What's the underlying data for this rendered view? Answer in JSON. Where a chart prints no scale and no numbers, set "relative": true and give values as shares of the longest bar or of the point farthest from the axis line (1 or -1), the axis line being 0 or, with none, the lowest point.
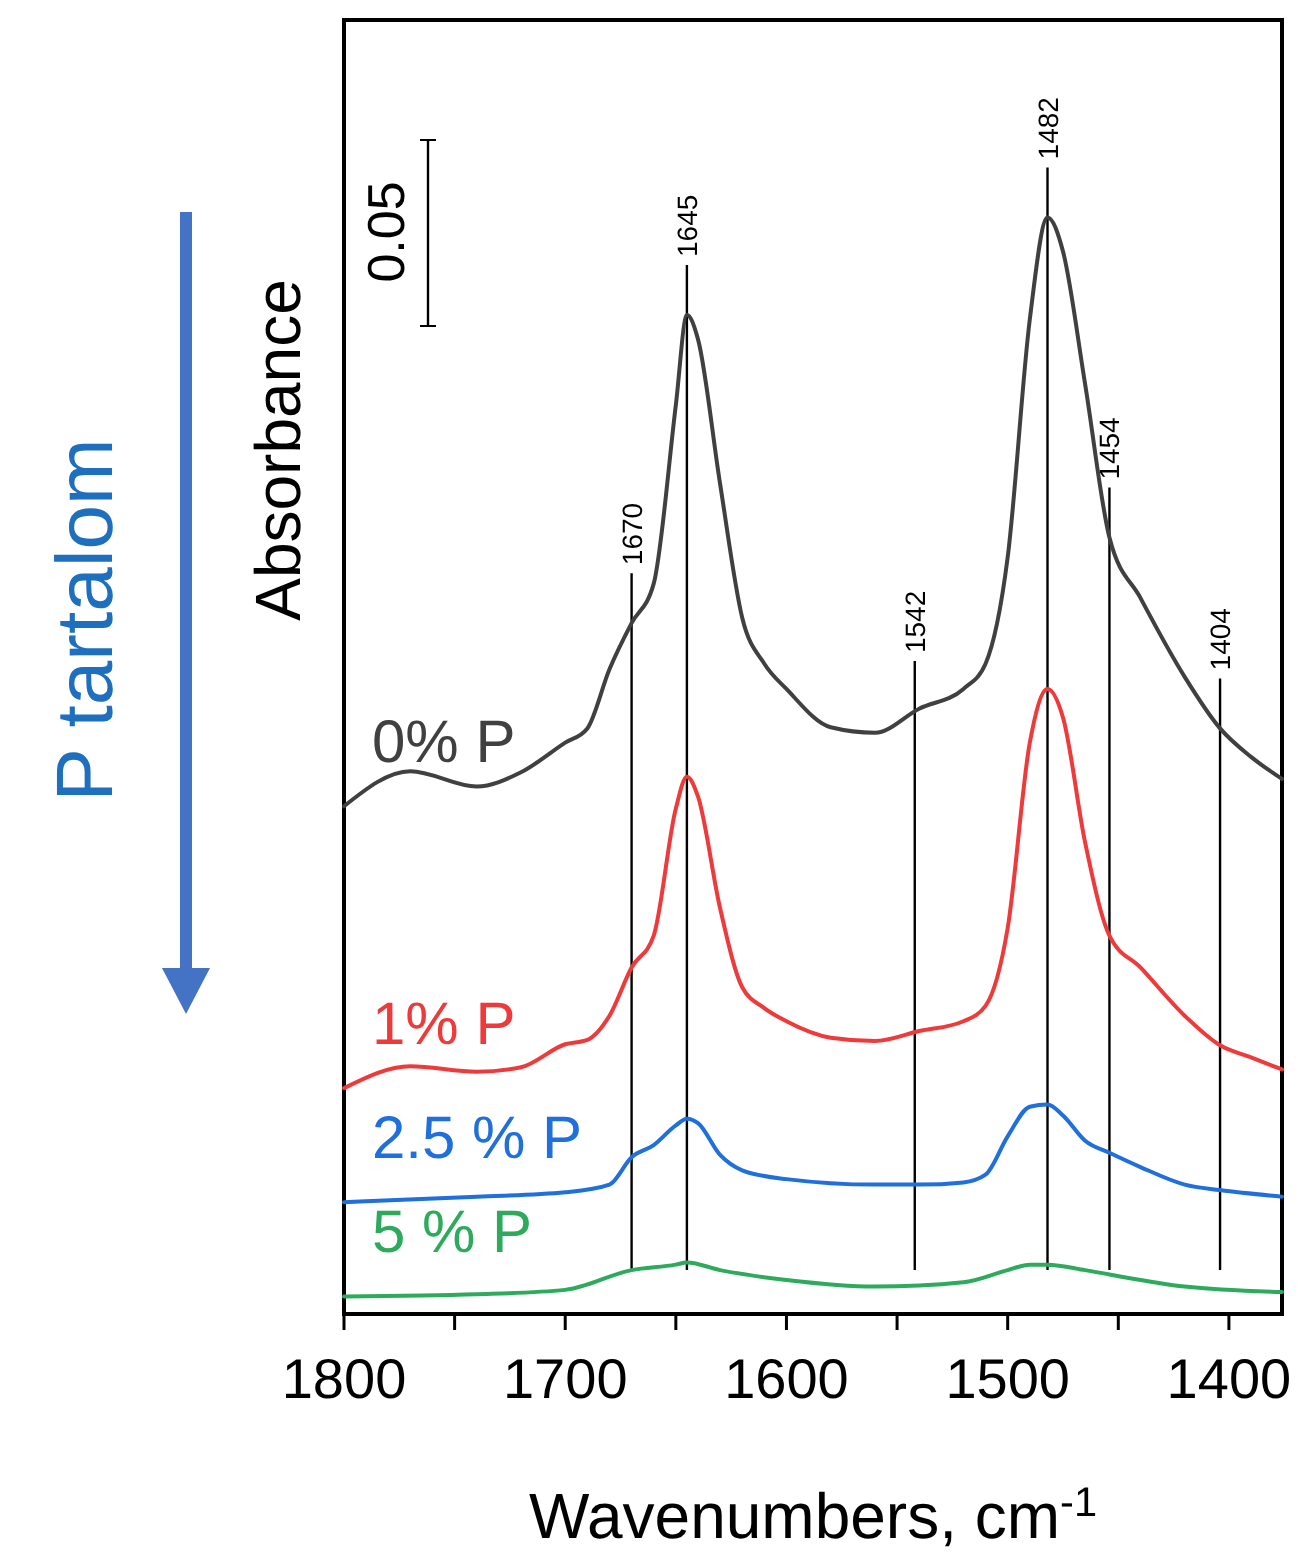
{
  "chart_data": {
    "type": "line",
    "relative": true,
    "xlabel": "Wavenumbers, cm$^{-1}$",
    "ylabel": "Absorbance",
    "xlim": [
      1800,
      1376
    ],
    "xticks": [
      1800,
      {
        "value": 1750,
        "label": null
      },
      1700,
      {
        "value": 1650,
        "label": null
      },
      1600,
      {
        "value": 1550,
        "label": null
      },
      1500,
      {
        "value": 1450,
        "label": null
      },
      1400
    ],
    "grid": false,
    "marker": "none",
    "line_style": "solid",
    "series": [
      {
        "name": "0% P",
        "color": "#404040",
        "x": [
          1800,
          1770,
          1740,
          1720,
          1700,
          1690,
          1680,
          1670,
          1660,
          1650,
          1645,
          1640,
          1630,
          1620,
          1610,
          1600,
          1580,
          1560,
          1540,
          1520,
          1510,
          1500,
          1490,
          1482,
          1475,
          1465,
          1454,
          1440,
          1420,
          1404,
          1390,
          1376
        ],
        "values": [
          0.463,
          0.495,
          0.481,
          0.494,
          0.521,
          0.534,
          0.588,
          0.63,
          0.666,
          0.829,
          0.911,
          0.889,
          0.757,
          0.635,
          0.593,
          0.57,
          0.535,
          0.53,
          0.552,
          0.57,
          0.593,
          0.69,
          0.907,
          1,
          0.969,
          0.848,
          0.708,
          0.653,
          0.581,
          0.534,
          0.508,
          0.488
        ]
      },
      {
        "name": "1% P",
        "color": "#ee3a3a",
        "x": [
          1800,
          1770,
          1740,
          1720,
          1700,
          1690,
          1680,
          1670,
          1660,
          1650,
          1645,
          1640,
          1630,
          1620,
          1610,
          1600,
          1580,
          1560,
          1540,
          1520,
          1510,
          1500,
          1490,
          1482,
          1475,
          1465,
          1454,
          1440,
          1420,
          1404,
          1390,
          1376
        ],
        "values": [
          0.206,
          0.226,
          0.221,
          0.225,
          0.246,
          0.25,
          0.272,
          0.316,
          0.345,
          0.461,
          0.49,
          0.472,
          0.37,
          0.298,
          0.279,
          0.267,
          0.252,
          0.249,
          0.258,
          0.267,
          0.281,
          0.352,
          0.521,
          0.57,
          0.544,
          0.43,
          0.345,
          0.316,
          0.272,
          0.245,
          0.234,
          0.223
        ]
      },
      {
        "name": "2.5 % P",
        "color": "#1f6fdc",
        "x": [
          1800,
          1740,
          1700,
          1680,
          1670,
          1660,
          1650,
          1645,
          1640,
          1630,
          1620,
          1600,
          1560,
          1540,
          1520,
          1510,
          1500,
          1490,
          1482,
          1475,
          1465,
          1454,
          1440,
          1420,
          1404,
          1376
        ],
        "values": [
          0.102,
          0.107,
          0.111,
          0.118,
          0.143,
          0.154,
          0.172,
          0.178,
          0.174,
          0.145,
          0.131,
          0.123,
          0.118,
          0.118,
          0.12,
          0.127,
          0.162,
          0.189,
          0.191,
          0.181,
          0.158,
          0.147,
          0.134,
          0.118,
          0.113,
          0.107
        ]
      },
      {
        "name": "5 % P",
        "color": "#2eaa5c",
        "x": [
          1800,
          1740,
          1700,
          1670,
          1650,
          1645,
          1630,
          1600,
          1560,
          1520,
          1500,
          1490,
          1482,
          1465,
          1454,
          1420,
          1376
        ],
        "values": [
          0.016,
          0.018,
          0.022,
          0.04,
          0.045,
          0.047,
          0.04,
          0.031,
          0.025,
          0.029,
          0.04,
          0.045,
          0.045,
          0.04,
          0.036,
          0.025,
          0.02
        ]
      }
    ],
    "ref_lines": [
      {
        "axis": "x",
        "value": 1670,
        "label": "1670",
        "color": "#000000"
      },
      {
        "axis": "x",
        "value": 1645,
        "label": "1645",
        "color": "#000000"
      },
      {
        "axis": "x",
        "value": 1542,
        "label": "1542",
        "color": "#000000"
      },
      {
        "axis": "x",
        "value": 1482,
        "label": "1482",
        "color": "#000000"
      },
      {
        "axis": "x",
        "value": 1454,
        "label": "1454",
        "color": "#000000"
      },
      {
        "axis": "x",
        "value": 1404,
        "label": "1404",
        "color": "#000000"
      }
    ],
    "annotations": [
      "0.05",
      "P tartalom"
    ]
  }
}
